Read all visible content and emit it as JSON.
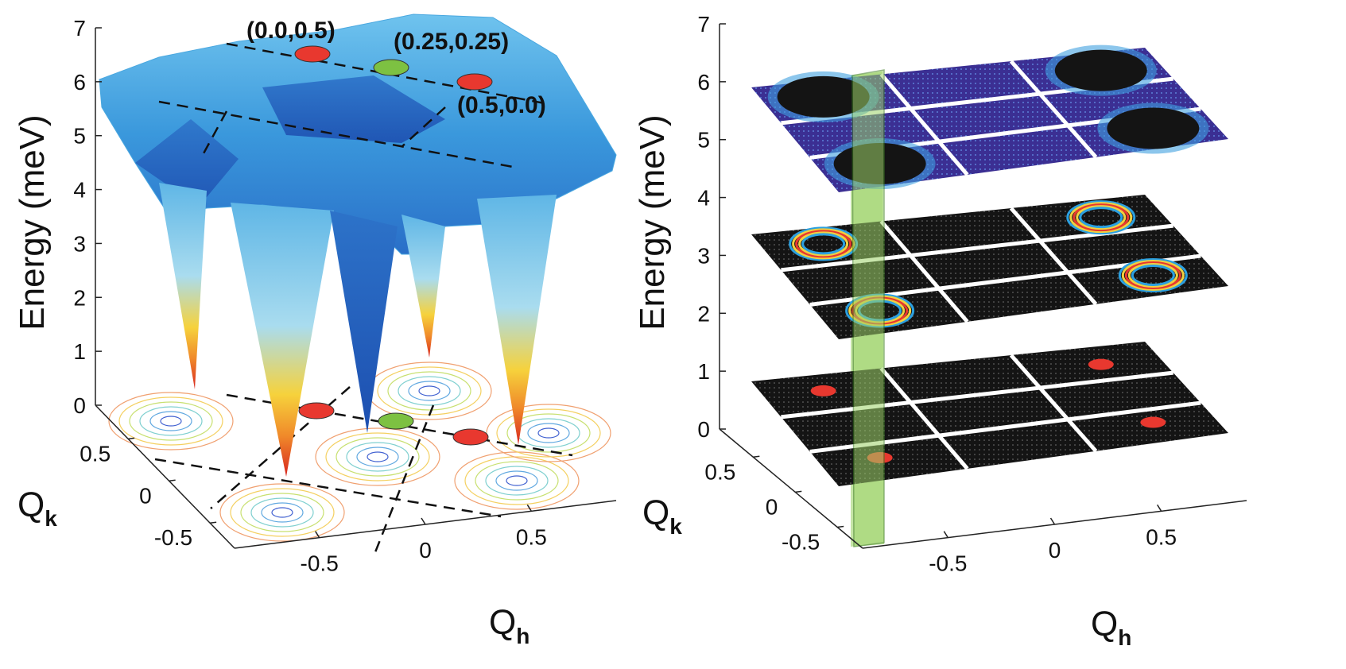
{
  "chart_data": [
    {
      "type": "surface",
      "zlabel": "Energy (meV)",
      "xlabel": {
        "symbol": "Q",
        "subscript": "h"
      },
      "ylabel": {
        "symbol": "Q",
        "subscript": "k"
      },
      "xlim": [
        -0.9,
        0.9
      ],
      "ylim": [
        -0.8,
        0.9
      ],
      "zlim": [
        0,
        7
      ],
      "xticks": [
        -0.5,
        0,
        0.5
      ],
      "yticks": [
        -0.5,
        0,
        0.5
      ],
      "zticks": [
        0,
        1,
        2,
        3,
        4,
        5,
        6,
        7
      ],
      "annotations": [
        {
          "text": "(0.0,0.5)",
          "color": "#e8382f"
        },
        {
          "text": "(0.25,0.25)",
          "color": "#7dc142"
        },
        {
          "text": "(0.5,0.0)",
          "color": "#e8382f"
        }
      ]
    },
    {
      "type": "slices",
      "zlabel": "Energy (meV)",
      "xlabel": {
        "symbol": "Q",
        "subscript": "h"
      },
      "ylabel": {
        "symbol": "Q",
        "subscript": "k"
      },
      "xlim": [
        -0.9,
        0.9
      ],
      "ylim": [
        -0.8,
        0.9
      ],
      "zlim": [
        0,
        7
      ],
      "xticks": [
        -0.5,
        0,
        0.5
      ],
      "yticks": [
        -0.5,
        0,
        0.5
      ],
      "zticks": [
        0,
        1,
        2,
        3,
        4,
        5,
        6,
        7
      ]
    }
  ]
}
